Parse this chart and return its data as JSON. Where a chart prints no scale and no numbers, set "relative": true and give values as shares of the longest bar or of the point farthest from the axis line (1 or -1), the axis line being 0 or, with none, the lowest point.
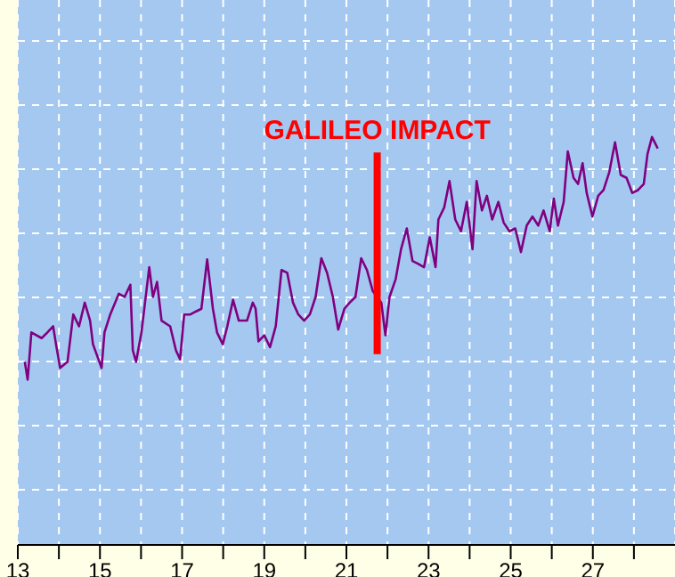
{
  "chart_data": {
    "type": "line",
    "relative": true,
    "color": "#800080",
    "grid": true,
    "marker": "none",
    "line_style": "solid",
    "x": [
      13.17,
      13.24,
      13.33,
      13.58,
      13.72,
      13.86,
      13.93,
      14.03,
      14.21,
      14.35,
      14.49,
      14.63,
      14.76,
      14.83,
      15.04,
      15.11,
      15.25,
      15.46,
      15.6,
      15.74,
      15.8,
      15.88,
      16.01,
      16.2,
      16.29,
      16.39,
      16.5,
      16.71,
      16.85,
      16.95,
      17.05,
      17.2,
      17.33,
      17.47,
      17.61,
      17.75,
      17.85,
      17.99,
      18.1,
      18.24,
      18.38,
      18.58,
      18.72,
      18.79,
      18.86,
      19.0,
      19.14,
      19.28,
      19.42,
      19.56,
      19.7,
      19.83,
      19.97,
      20.11,
      20.25,
      20.39,
      20.53,
      20.67,
      20.8,
      20.95,
      21.08,
      21.22,
      21.36,
      21.5,
      21.64,
      21.85,
      21.95,
      22.05,
      22.2,
      22.33,
      22.47,
      22.61,
      22.75,
      22.89,
      23.03,
      23.17,
      23.24,
      23.38,
      23.51,
      23.65,
      23.79,
      23.93,
      24.07,
      24.17,
      24.3,
      24.42,
      24.55,
      24.7,
      24.83,
      24.97,
      25.11,
      25.25,
      25.39,
      25.53,
      25.67,
      25.8,
      25.95,
      26.05,
      26.15,
      26.29,
      26.39,
      26.53,
      26.64,
      26.75,
      26.85,
      26.99,
      27.13,
      27.26,
      27.4,
      27.54,
      27.68,
      27.82,
      27.96,
      28.1,
      28.24,
      28.33,
      28.44,
      28.58
    ],
    "values": [
      0.449,
      0.405,
      0.521,
      0.507,
      0.521,
      0.536,
      0.492,
      0.434,
      0.449,
      0.565,
      0.536,
      0.594,
      0.55,
      0.492,
      0.434,
      0.521,
      0.565,
      0.616,
      0.608,
      0.638,
      0.477,
      0.449,
      0.521,
      0.681,
      0.608,
      0.645,
      0.55,
      0.536,
      0.477,
      0.455,
      0.565,
      0.565,
      0.572,
      0.579,
      0.7,
      0.579,
      0.521,
      0.492,
      0.536,
      0.601,
      0.55,
      0.55,
      0.594,
      0.579,
      0.499,
      0.514,
      0.485,
      0.536,
      0.674,
      0.667,
      0.594,
      0.565,
      0.55,
      0.565,
      0.608,
      0.703,
      0.667,
      0.608,
      0.528,
      0.579,
      0.594,
      0.608,
      0.703,
      0.674,
      0.623,
      0.594,
      0.514,
      0.608,
      0.652,
      0.725,
      0.776,
      0.696,
      0.689,
      0.681,
      0.754,
      0.681,
      0.798,
      0.827,
      0.892,
      0.798,
      0.769,
      0.841,
      0.725,
      0.892,
      0.82,
      0.856,
      0.798,
      0.841,
      0.79,
      0.769,
      0.776,
      0.718,
      0.783,
      0.805,
      0.783,
      0.82,
      0.769,
      0.849,
      0.783,
      0.841,
      0.965,
      0.9,
      0.885,
      0.936,
      0.863,
      0.805,
      0.856,
      0.87,
      0.914,
      0.987,
      0.907,
      0.9,
      0.863,
      0.87,
      0.885,
      0.958,
      1,
      0.972
    ],
    "xlim": [
      13,
      29
    ],
    "xticks": [
      13,
      {
        "value": 14,
        "label": null
      },
      15,
      {
        "value": 16,
        "label": null
      },
      17,
      {
        "value": 18,
        "label": null
      },
      19,
      {
        "value": 20,
        "label": null
      },
      21,
      {
        "value": 22,
        "label": null
      },
      23,
      {
        "value": 24,
        "label": null
      },
      25,
      {
        "value": 26,
        "label": null
      },
      27,
      {
        "value": 28,
        "label": null
      }
    ],
    "ref_lines": [
      {
        "axis": "x",
        "value": 21.75,
        "label": "GALILEO IMPACT",
        "color": "#ff0000"
      }
    ]
  }
}
